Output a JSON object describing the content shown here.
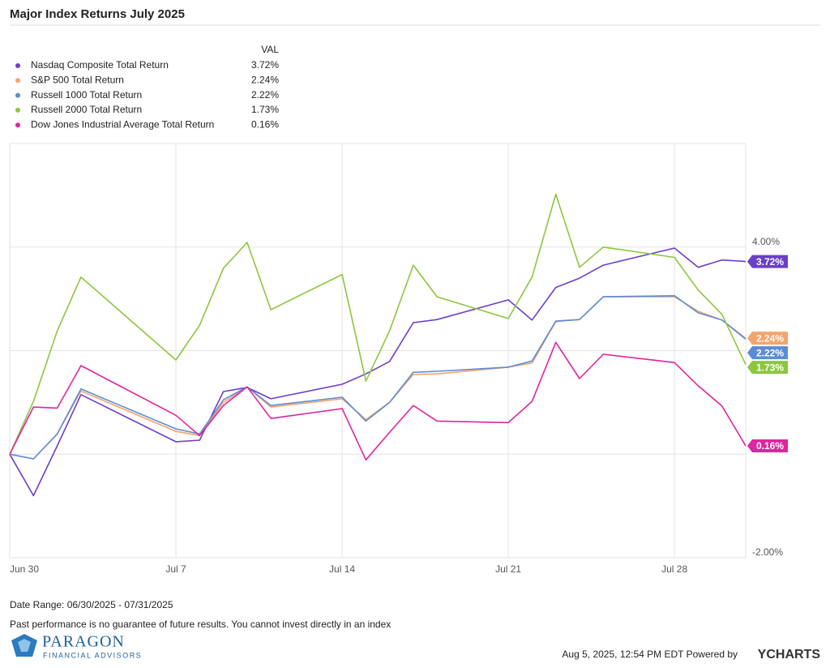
{
  "chart_data": {
    "type": "line",
    "title": "Major Index Returns July 2025",
    "legend_header": "VAL",
    "date_range": "Date Range: 06/30/2025 - 07/31/2025",
    "disclaimer": "Past performance is no guarantee of future results. You cannot invest directly in an index",
    "logo": {
      "name": "PARAGON",
      "subtitle": "FINANCIAL ADVISORS"
    },
    "timestamp": "Aug 5, 2025, 12:54 PM EDT Powered by",
    "brand": "YCHARTS",
    "grid": true,
    "x": [
      "2025-06-30",
      "2025-07-01",
      "2025-07-02",
      "2025-07-03",
      "2025-07-07",
      "2025-07-08",
      "2025-07-09",
      "2025-07-10",
      "2025-07-11",
      "2025-07-14",
      "2025-07-15",
      "2025-07-16",
      "2025-07-17",
      "2025-07-18",
      "2025-07-21",
      "2025-07-22",
      "2025-07-23",
      "2025-07-24",
      "2025-07-25",
      "2025-07-28",
      "2025-07-29",
      "2025-07-30",
      "2025-07-31"
    ],
    "xlim": [
      "2025-06-30",
      "2025-07-31"
    ],
    "xticks": [
      {
        "value": "2025-06-30",
        "label": "Jun 30"
      },
      {
        "value": "2025-07-07",
        "label": "Jul 7"
      },
      {
        "value": "2025-07-14",
        "label": "Jul 14"
      },
      {
        "value": "2025-07-21",
        "label": "Jul 21"
      },
      {
        "value": "2025-07-28",
        "label": "Jul 28"
      }
    ],
    "ylim": [
      -2,
      6
    ],
    "yticks": [
      {
        "value": -2,
        "label": "-2.00%"
      },
      {
        "value": 0,
        "label": null
      },
      {
        "value": 2,
        "label": null
      },
      {
        "value": 4,
        "label": "4.00%"
      },
      {
        "value": 6,
        "label": null
      }
    ],
    "series": [
      {
        "name": "Nasdaq Composite Total Return",
        "color": "#6c3fc8",
        "values": [
          0,
          -0.8,
          0.16,
          1.15,
          0.24,
          0.27,
          1.21,
          1.29,
          1.07,
          1.35,
          1.55,
          1.79,
          2.54,
          2.6,
          2.98,
          2.59,
          3.22,
          3.4,
          3.65,
          3.98,
          3.61,
          3.75,
          3.72
        ],
        "value_labels": [
          null,
          null,
          null,
          null,
          null,
          null,
          null,
          null,
          null,
          null,
          null,
          null,
          null,
          null,
          null,
          null,
          null,
          null,
          null,
          null,
          null,
          null,
          "3.72%"
        ]
      },
      {
        "name": "S&P 500 Total Return",
        "color": "#f4a46c",
        "values": [
          0,
          -0.09,
          0.39,
          1.22,
          0.44,
          0.36,
          1.0,
          1.3,
          0.91,
          1.07,
          0.67,
          1.0,
          1.54,
          1.55,
          1.68,
          1.76,
          2.56,
          2.6,
          3.04,
          3.04,
          2.76,
          2.59,
          2.24
        ],
        "value_labels": [
          null,
          null,
          null,
          null,
          null,
          null,
          null,
          null,
          null,
          null,
          null,
          null,
          null,
          null,
          null,
          null,
          null,
          null,
          null,
          null,
          null,
          null,
          "2.24%"
        ]
      },
      {
        "name": "Russell 1000 Total Return",
        "color": "#5b8dd6",
        "values": [
          0,
          -0.09,
          0.39,
          1.26,
          0.49,
          0.39,
          1.05,
          1.3,
          0.94,
          1.1,
          0.64,
          1.0,
          1.58,
          1.6,
          1.68,
          1.8,
          2.57,
          2.6,
          3.04,
          3.06,
          2.73,
          2.59,
          2.22
        ],
        "value_labels": [
          null,
          null,
          null,
          null,
          null,
          null,
          null,
          null,
          null,
          null,
          null,
          null,
          null,
          null,
          null,
          null,
          null,
          null,
          null,
          null,
          null,
          null,
          "2.22%"
        ]
      },
      {
        "name": "Russell 2000 Total Return",
        "color": "#8cc63f",
        "values": [
          0,
          1.02,
          2.38,
          3.42,
          1.82,
          2.49,
          3.59,
          4.09,
          2.79,
          3.47,
          1.41,
          2.38,
          3.65,
          3.04,
          2.62,
          3.42,
          5.02,
          3.61,
          4.0,
          3.8,
          3.17,
          2.7,
          1.73
        ],
        "value_labels": [
          null,
          null,
          null,
          null,
          null,
          null,
          null,
          null,
          null,
          null,
          null,
          null,
          null,
          null,
          null,
          null,
          null,
          null,
          null,
          null,
          null,
          null,
          "1.73%"
        ]
      },
      {
        "name": "Dow Jones Industrial Average Total Return",
        "color": "#e0259f",
        "values": [
          0,
          0.91,
          0.89,
          1.71,
          0.75,
          0.36,
          0.94,
          1.3,
          0.69,
          0.88,
          -0.11,
          0.42,
          0.94,
          0.64,
          0.61,
          1.02,
          2.16,
          1.46,
          1.93,
          1.77,
          1.32,
          0.93,
          0.16
        ],
        "value_labels": [
          null,
          null,
          null,
          null,
          null,
          null,
          null,
          null,
          null,
          null,
          null,
          null,
          null,
          null,
          null,
          null,
          null,
          null,
          null,
          null,
          null,
          null,
          "0.16%"
        ]
      }
    ]
  }
}
